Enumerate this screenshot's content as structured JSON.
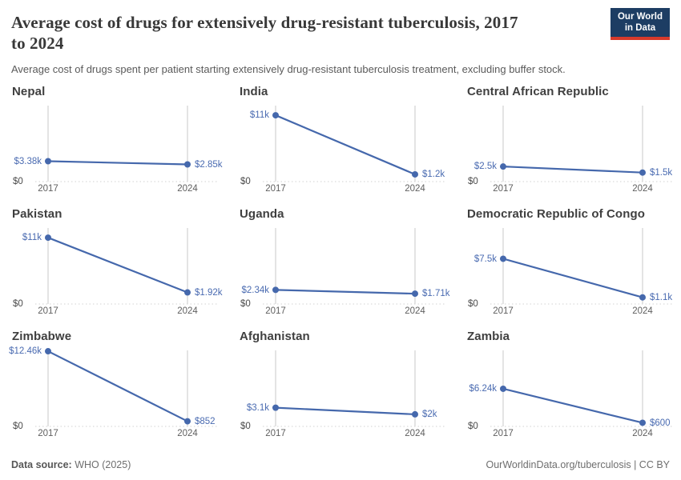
{
  "header": {
    "title": "Average cost of drugs for extensively drug-resistant tuberculosis, 2017\nto 2024",
    "subtitle": "Average cost of drugs spent per patient starting extensively drug-resistant tuberculosis treatment, excluding buffer stock.",
    "logo_line1": "Our World",
    "logo_line2": "in Data"
  },
  "footer": {
    "source_label": "Data source:",
    "source_value": "WHO (2025)",
    "right_text": "OurWorldinData.org/tuberculosis | CC BY"
  },
  "colors": {
    "line": "#4568ac",
    "marker": "#4568ac",
    "value_label": "#4a6bb1",
    "gridline": "#c8c8c8",
    "baseline": "#d2d2d2",
    "logo_bg": "#1d3d63",
    "logo_accent": "#d73a2b"
  },
  "chart_data": {
    "type": "line",
    "x": [
      2017,
      2024
    ],
    "x_tick_labels": [
      "2017",
      "2024"
    ],
    "ylim": [
      0,
      12600
    ],
    "y_zero_label": "$0",
    "grid": "vertical gridlines at 2017 and 2024, dotted zero baseline",
    "legend": "none",
    "series": [
      {
        "name": "Nepal",
        "values": [
          3380,
          2850
        ],
        "labels": [
          "$3.38k",
          "$2.85k"
        ]
      },
      {
        "name": "India",
        "values": [
          11000,
          1200
        ],
        "labels": [
          "$11k",
          "$1.2k"
        ]
      },
      {
        "name": "Central African Republic",
        "values": [
          2500,
          1500
        ],
        "labels": [
          "$2.5k",
          "$1.5k"
        ]
      },
      {
        "name": "Pakistan",
        "values": [
          11000,
          1920
        ],
        "labels": [
          "$11k",
          "$1.92k"
        ]
      },
      {
        "name": "Uganda",
        "values": [
          2340,
          1710
        ],
        "labels": [
          "$2.34k",
          "$1.71k"
        ]
      },
      {
        "name": "Democratic Republic of Congo",
        "values": [
          7500,
          1100
        ],
        "labels": [
          "$7.5k",
          "$1.1k"
        ]
      },
      {
        "name": "Zimbabwe",
        "values": [
          12460,
          852
        ],
        "labels": [
          "$12.46k",
          "$852"
        ]
      },
      {
        "name": "Afghanistan",
        "values": [
          3100,
          2000
        ],
        "labels": [
          "$3.1k",
          "$2k"
        ]
      },
      {
        "name": "Zambia",
        "values": [
          6240,
          600
        ],
        "labels": [
          "$6.24k",
          "$600"
        ]
      }
    ]
  }
}
